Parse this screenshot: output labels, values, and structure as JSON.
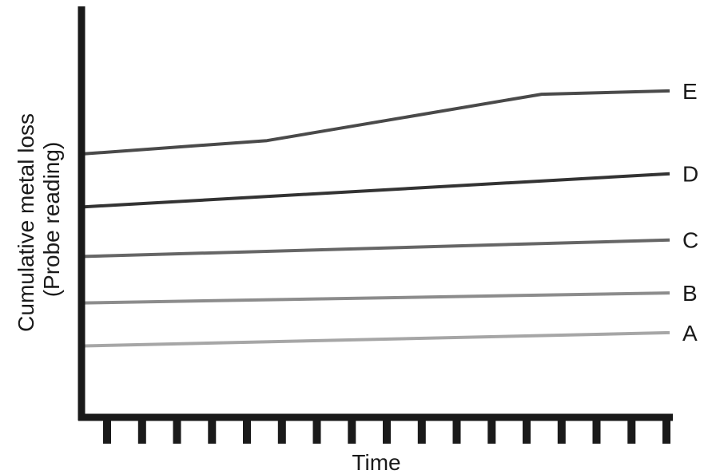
{
  "chart_data": {
    "type": "line",
    "title": "",
    "xlabel": "Time",
    "ylabel_lines": [
      "Cumulative metal loss",
      "(Probe reading)"
    ],
    "x_tick_count": 17,
    "xlim": [
      0,
      16
    ],
    "ylim": [
      0,
      100
    ],
    "grid": false,
    "legend": "none",
    "series": [
      {
        "name": "A",
        "color": "#a6a6a6",
        "x": [
          0,
          16
        ],
        "y": [
          10,
          14
        ]
      },
      {
        "name": "B",
        "color": "#8c8c8c",
        "x": [
          0,
          16
        ],
        "y": [
          23,
          26
        ]
      },
      {
        "name": "C",
        "color": "#666666",
        "x": [
          0,
          16
        ],
        "y": [
          37,
          42
        ]
      },
      {
        "name": "D",
        "color": "#333333",
        "x": [
          0,
          16
        ],
        "y": [
          52,
          62
        ]
      },
      {
        "name": "E",
        "color": "#4a4a4a",
        "x": [
          0,
          5,
          12.5,
          16
        ],
        "y": [
          68,
          72,
          86,
          87
        ]
      }
    ]
  }
}
